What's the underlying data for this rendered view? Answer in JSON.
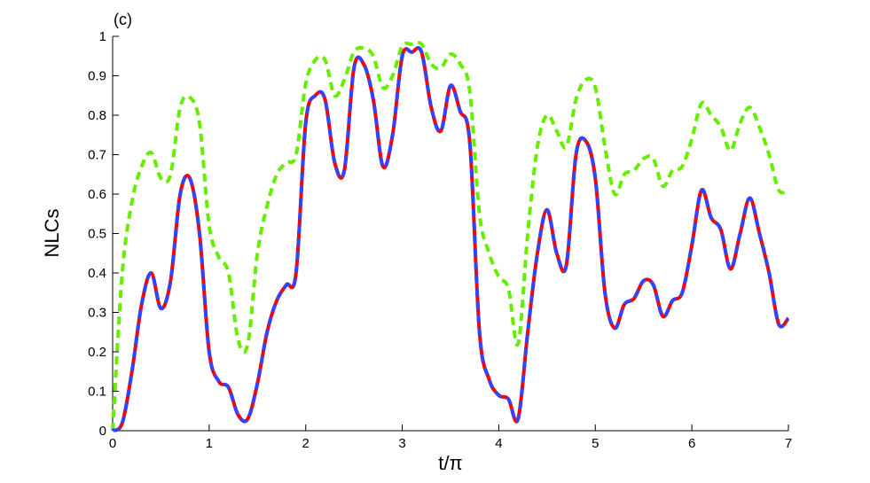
{
  "chart_data": {
    "type": "line",
    "annotation": "(c)",
    "x_label": "t/π",
    "y_label": "NLCs",
    "x": [
      0,
      0.1,
      0.2,
      0.3,
      0.4,
      0.5,
      0.6,
      0.7,
      0.8,
      0.9,
      1,
      1.1,
      1.2,
      1.3,
      1.4,
      1.5,
      1.6,
      1.7,
      1.8,
      1.9,
      2,
      2.1,
      2.2,
      2.3,
      2.4,
      2.5,
      2.6,
      2.7,
      2.8,
      2.9,
      3,
      3.1,
      3.2,
      3.3,
      3.4,
      3.5,
      3.6,
      3.7,
      3.8,
      3.9,
      4,
      4.1,
      4.2,
      4.3,
      4.4,
      4.5,
      4.6,
      4.7,
      4.8,
      4.9,
      5,
      5.1,
      5.2,
      5.3,
      5.4,
      5.5,
      5.6,
      5.7,
      5.8,
      5.9,
      6,
      6.1,
      6.2,
      6.3,
      6.4,
      6.5,
      6.6,
      6.7,
      6.8,
      6.9,
      7
    ],
    "series": [
      {
        "color": "#ff0000",
        "dash": false,
        "values": [
          0,
          0.02,
          0.15,
          0.32,
          0.4,
          0.31,
          0.38,
          0.6,
          0.64,
          0.5,
          0.2,
          0.125,
          0.11,
          0.04,
          0.03,
          0.12,
          0.25,
          0.33,
          0.37,
          0.4,
          0.78,
          0.85,
          0.84,
          0.68,
          0.66,
          0.92,
          0.93,
          0.84,
          0.67,
          0.75,
          0.95,
          0.96,
          0.96,
          0.82,
          0.76,
          0.875,
          0.81,
          0.73,
          0.25,
          0.13,
          0.09,
          0.08,
          0.03,
          0.25,
          0.45,
          0.56,
          0.45,
          0.42,
          0.7,
          0.735,
          0.64,
          0.35,
          0.26,
          0.32,
          0.335,
          0.38,
          0.37,
          0.29,
          0.33,
          0.35,
          0.47,
          0.61,
          0.54,
          0.51,
          0.41,
          0.5,
          0.59,
          0.5,
          0.4,
          0.27,
          0.285
        ]
      },
      {
        "color": "#3344ff",
        "dash": true,
        "values": [
          0,
          0.02,
          0.15,
          0.32,
          0.4,
          0.31,
          0.38,
          0.6,
          0.64,
          0.5,
          0.2,
          0.125,
          0.11,
          0.04,
          0.03,
          0.12,
          0.25,
          0.33,
          0.37,
          0.4,
          0.78,
          0.85,
          0.84,
          0.68,
          0.66,
          0.92,
          0.93,
          0.84,
          0.67,
          0.75,
          0.95,
          0.96,
          0.96,
          0.82,
          0.76,
          0.875,
          0.81,
          0.73,
          0.25,
          0.13,
          0.09,
          0.08,
          0.03,
          0.25,
          0.45,
          0.56,
          0.45,
          0.42,
          0.7,
          0.735,
          0.64,
          0.35,
          0.26,
          0.32,
          0.335,
          0.38,
          0.37,
          0.29,
          0.33,
          0.35,
          0.47,
          0.61,
          0.54,
          0.51,
          0.41,
          0.5,
          0.59,
          0.5,
          0.4,
          0.27,
          0.285
        ]
      },
      {
        "color": "#66ee00",
        "dash": true,
        "values": [
          0,
          0.4,
          0.58,
          0.67,
          0.705,
          0.64,
          0.65,
          0.82,
          0.845,
          0.78,
          0.52,
          0.44,
          0.4,
          0.23,
          0.22,
          0.45,
          0.57,
          0.65,
          0.68,
          0.7,
          0.88,
          0.94,
          0.94,
          0.85,
          0.89,
          0.96,
          0.97,
          0.95,
          0.87,
          0.9,
          0.975,
          0.98,
          0.98,
          0.93,
          0.92,
          0.955,
          0.93,
          0.86,
          0.55,
          0.45,
          0.39,
          0.36,
          0.22,
          0.5,
          0.72,
          0.8,
          0.76,
          0.72,
          0.84,
          0.89,
          0.87,
          0.72,
          0.6,
          0.65,
          0.66,
          0.69,
          0.69,
          0.62,
          0.66,
          0.67,
          0.74,
          0.83,
          0.8,
          0.77,
          0.71,
          0.78,
          0.82,
          0.77,
          0.7,
          0.61,
          0.61
        ]
      }
    ],
    "xlim": [
      0,
      7
    ],
    "xticks": [
      0,
      1,
      2,
      3,
      4,
      5,
      6,
      7
    ],
    "ylim": [
      0,
      1
    ],
    "yticks": [
      0,
      0.1,
      0.2,
      0.3,
      0.4,
      0.5,
      0.6,
      0.7,
      0.8,
      0.9,
      1
    ]
  }
}
